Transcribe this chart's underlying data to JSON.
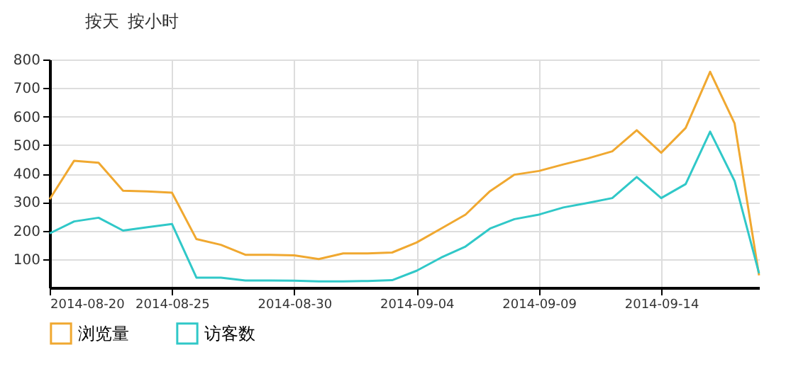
{
  "chart_data": {
    "type": "line",
    "annotations": [
      "按天",
      "按小时"
    ],
    "x": [
      "2014-08-20",
      "2014-08-21",
      "2014-08-22",
      "2014-08-23",
      "2014-08-24",
      "2014-08-25",
      "2014-08-26",
      "2014-08-27",
      "2014-08-28",
      "2014-08-29",
      "2014-08-30",
      "2014-08-31",
      "2014-09-01",
      "2014-09-02",
      "2014-09-03",
      "2014-09-04",
      "2014-09-05",
      "2014-09-06",
      "2014-09-07",
      "2014-09-08",
      "2014-09-09",
      "2014-09-10",
      "2014-09-11",
      "2014-09-12",
      "2014-09-13",
      "2014-09-14",
      "2014-09-15",
      "2014-09-16",
      "2014-09-17",
      "2014-09-18"
    ],
    "series": [
      {
        "name": "浏览量",
        "color": "#f0a830",
        "values": [
          310,
          445,
          438,
          340,
          337,
          333,
          170,
          150,
          115,
          115,
          113,
          100,
          120,
          120,
          123,
          158,
          207,
          256,
          338,
          396,
          409,
          432,
          453,
          478,
          552,
          473,
          560,
          757,
          576,
          43
        ]
      },
      {
        "name": "访客数",
        "color": "#30c8c8",
        "values": [
          190,
          232,
          245,
          200,
          212,
          223,
          35,
          35,
          25,
          25,
          24,
          22,
          22,
          23,
          26,
          59,
          105,
          144,
          207,
          240,
          256,
          281,
          297,
          314,
          388,
          314,
          363,
          547,
          374,
          50
        ]
      }
    ],
    "xlim": [
      "2014-08-20",
      "2014-09-18"
    ],
    "xticks": [
      "2014-08-20",
      "2014-08-25",
      "2014-08-30",
      "2014-09-04",
      "2014-09-09",
      "2014-09-14"
    ],
    "ylim": [
      0,
      800
    ],
    "yticks": [
      100,
      200,
      300,
      400,
      500,
      600,
      700,
      800
    ],
    "grid": true,
    "legend": "bottom left",
    "marker": "none",
    "line_style": "solid"
  }
}
